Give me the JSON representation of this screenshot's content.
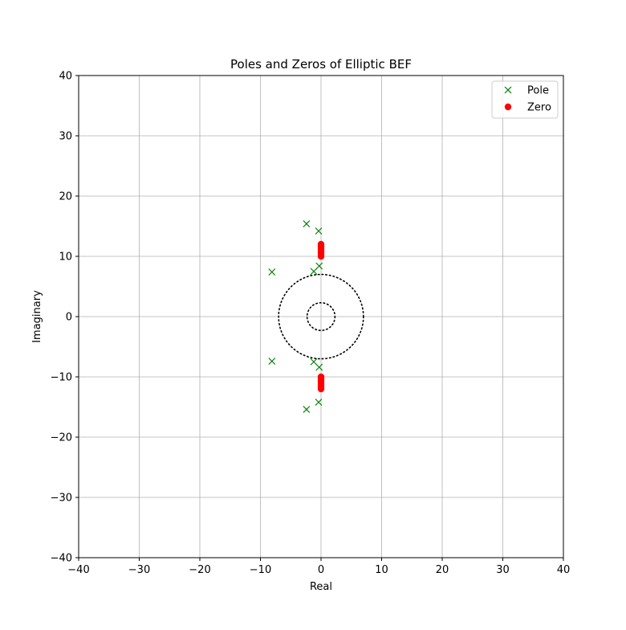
{
  "chart_data": {
    "type": "scatter",
    "title": "Poles and Zeros  of Elliptic BEF",
    "xlabel": "Real",
    "ylabel": "Imaginary",
    "xlim": [
      -40,
      40
    ],
    "ylim": [
      -40,
      40
    ],
    "xticks": [
      -40,
      -30,
      -20,
      -10,
      0,
      10,
      20,
      30,
      40
    ],
    "yticks": [
      -40,
      -30,
      -20,
      -10,
      0,
      10,
      20,
      30,
      40
    ],
    "xtick_labels": [
      "−40",
      "−30",
      "−20",
      "−10",
      "0",
      "10",
      "20",
      "30",
      "40"
    ],
    "ytick_labels": [
      "−40",
      "−30",
      "−20",
      "−10",
      "0",
      "10",
      "20",
      "30",
      "40"
    ],
    "grid": true,
    "legend_position": "top-right",
    "series": [
      {
        "name": "Pole",
        "marker": "x",
        "color": "#008000",
        "points": [
          [
            -2.4,
            15.4
          ],
          [
            -0.4,
            14.2
          ],
          [
            -8.1,
            7.4
          ],
          [
            -1.2,
            7.5
          ],
          [
            -0.3,
            8.4
          ],
          [
            -2.4,
            -15.4
          ],
          [
            -0.4,
            -14.2
          ],
          [
            -8.1,
            -7.4
          ],
          [
            -1.2,
            -7.5
          ],
          [
            -0.3,
            -8.4
          ]
        ]
      },
      {
        "name": "Zero",
        "marker": "o",
        "color": "#ff0000",
        "points": [
          [
            0,
            10.0
          ],
          [
            0,
            10.4
          ],
          [
            0,
            10.8
          ],
          [
            0,
            11.2
          ],
          [
            0,
            11.6
          ],
          [
            0,
            12.0
          ],
          [
            0,
            -10.0
          ],
          [
            0,
            -10.4
          ],
          [
            0,
            -10.8
          ],
          [
            0,
            -11.2
          ],
          [
            0,
            -11.6
          ],
          [
            0,
            -12.0
          ]
        ]
      }
    ],
    "circles": [
      {
        "center": [
          0,
          0
        ],
        "radius": 7.0,
        "style": "dotted",
        "color": "#000000"
      },
      {
        "center": [
          0,
          0
        ],
        "radius": 2.3,
        "style": "dotted",
        "color": "#000000"
      }
    ]
  }
}
